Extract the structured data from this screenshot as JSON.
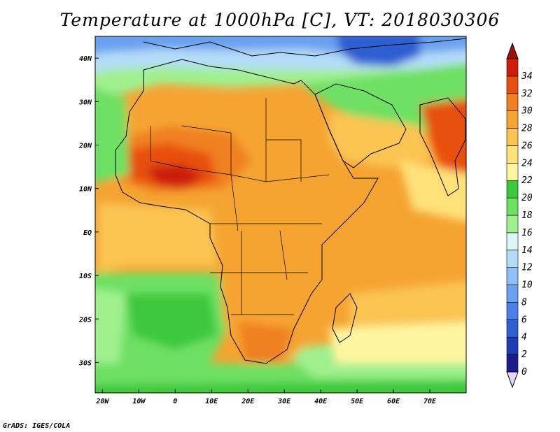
{
  "title": "Temperature at 1000hPa [C], VT: 2018030306",
  "credit": "GrADS: IGES/COLA",
  "map": {
    "lon_range": [
      -22,
      80
    ],
    "lat_range": [
      -37,
      45
    ],
    "lon_ticks": [
      {
        "value": -20,
        "label": "20W"
      },
      {
        "value": -10,
        "label": "10W"
      },
      {
        "value": 0,
        "label": "0"
      },
      {
        "value": 10,
        "label": "10E"
      },
      {
        "value": 20,
        "label": "20E"
      },
      {
        "value": 30,
        "label": "30E"
      },
      {
        "value": 40,
        "label": "40E"
      },
      {
        "value": 50,
        "label": "50E"
      },
      {
        "value": 60,
        "label": "60E"
      },
      {
        "value": 70,
        "label": "70E"
      }
    ],
    "lat_ticks": [
      {
        "value": 40,
        "label": "40N"
      },
      {
        "value": 30,
        "label": "30N"
      },
      {
        "value": 20,
        "label": "20N"
      },
      {
        "value": 10,
        "label": "10N"
      },
      {
        "value": 0,
        "label": "EQ"
      },
      {
        "value": -10,
        "label": "10S"
      },
      {
        "value": -20,
        "label": "20S"
      },
      {
        "value": -30,
        "label": "30S"
      }
    ]
  },
  "colorbar": {
    "levels": [
      "0",
      "2",
      "4",
      "6",
      "8",
      "10",
      "12",
      "14",
      "16",
      "18",
      "20",
      "22",
      "24",
      "26",
      "28",
      "30",
      "32",
      "34"
    ],
    "colors": [
      "#1c1c8c",
      "#1e3cb4",
      "#2f5fd2",
      "#4a80e6",
      "#6aa0f0",
      "#8fc0f5",
      "#b4dcf8",
      "#dcf5f5",
      "#a0f090",
      "#6ee064",
      "#3cc83c",
      "#fff5a0",
      "#ffe17a",
      "#fbc452",
      "#f5a432",
      "#f08020",
      "#e85010",
      "#cc1e0a"
    ],
    "under_color": "#e0d8f5",
    "over_color": "#a01008"
  }
}
